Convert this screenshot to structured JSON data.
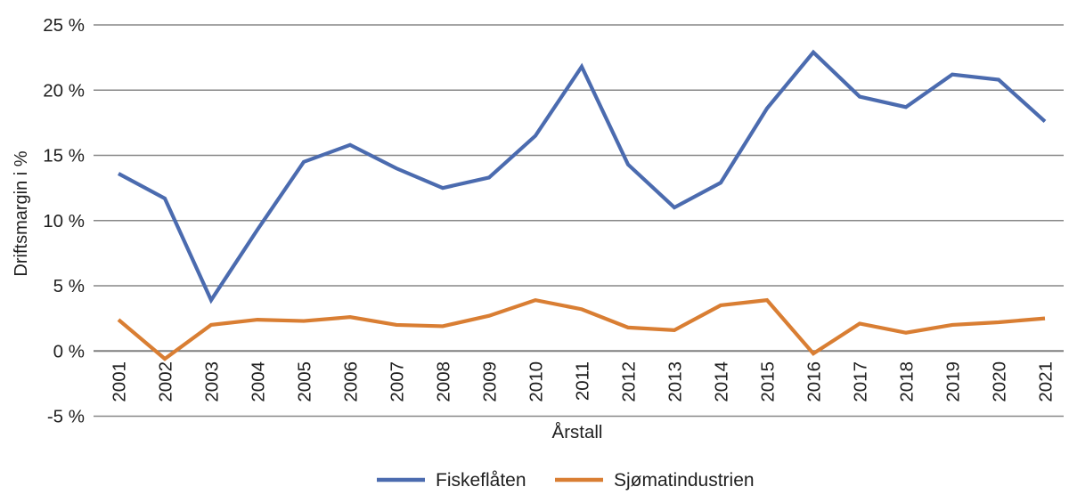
{
  "chart_data": {
    "type": "line",
    "title": "",
    "xlabel": "Årstall",
    "ylabel": "Driftsmargin i %",
    "x": [
      "2001",
      "2002",
      "2003",
      "2004",
      "2005",
      "2006",
      "2007",
      "2008",
      "2009",
      "2010",
      "2011",
      "2012",
      "2013",
      "2014",
      "2015",
      "2016",
      "2017",
      "2018",
      "2019",
      "2020",
      "2021"
    ],
    "series": [
      {
        "name": "Fiskeflåten",
        "color": "#4b6baf",
        "values": [
          13.6,
          11.7,
          3.9,
          9.3,
          14.5,
          15.8,
          14.0,
          12.5,
          13.3,
          16.5,
          21.8,
          14.3,
          11.0,
          12.9,
          18.6,
          22.9,
          19.5,
          18.7,
          21.2,
          20.8,
          17.6
        ]
      },
      {
        "name": "Sjømatindustrien",
        "color": "#d97e33",
        "values": [
          2.4,
          -0.6,
          2.0,
          2.4,
          2.3,
          2.6,
          2.0,
          1.9,
          2.7,
          3.9,
          3.2,
          1.8,
          1.6,
          3.5,
          3.9,
          -0.2,
          2.1,
          1.4,
          2.0,
          2.2,
          2.5
        ]
      }
    ],
    "ylim": [
      -5,
      25
    ],
    "ytick_step": 5,
    "ytick_labels_top_down": [
      "25 %",
      "20 %",
      "15 %",
      "10 %",
      "5 %",
      "0 %",
      "-5 %"
    ],
    "grid": true,
    "legend_position": "bottom",
    "colors": {
      "gridline": "#878787",
      "zeroline": "#7f7f7f",
      "text": "#1f1f1f",
      "background": "#ffffff"
    }
  }
}
